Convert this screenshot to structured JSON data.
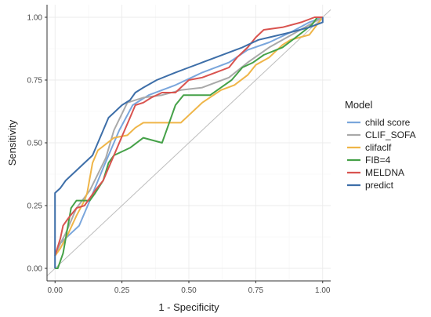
{
  "chart_data": {
    "type": "line",
    "title": "",
    "xlabel": "1 - Specificity",
    "ylabel": "Sensitivity",
    "xlim": [
      -0.03,
      1.03
    ],
    "ylim": [
      -0.05,
      1.05
    ],
    "x_ticks": [
      "0.00",
      "0.25",
      "0.50",
      "0.75",
      "1.00"
    ],
    "y_ticks": [
      "0.00",
      "0.25",
      "0.50",
      "0.75",
      "1.00"
    ],
    "x_tick_values": [
      0,
      0.25,
      0.5,
      0.75,
      1
    ],
    "y_tick_values": [
      0,
      0.25,
      0.5,
      0.75,
      1
    ],
    "grid": true,
    "reference_line": {
      "x": [
        0,
        1
      ],
      "y": [
        0,
        1
      ],
      "color": "#bdbdbd"
    },
    "legend": {
      "title": "Model",
      "position": "right"
    },
    "series": [
      {
        "name": "child score",
        "color": "#7aa6dc",
        "x": [
          0.0,
          0.02,
          0.06,
          0.09,
          0.13,
          0.18,
          0.24,
          0.29,
          0.35,
          0.45,
          0.55,
          0.65,
          0.72,
          0.8,
          0.88,
          0.95,
          1.0
        ],
        "y": [
          0.05,
          0.1,
          0.14,
          0.17,
          0.27,
          0.4,
          0.55,
          0.65,
          0.69,
          0.73,
          0.78,
          0.82,
          0.87,
          0.9,
          0.94,
          0.98,
          1.0
        ]
      },
      {
        "name": "CLIF_SOFA",
        "color": "#a9a9a9",
        "x": [
          0.0,
          0.02,
          0.04,
          0.08,
          0.13,
          0.19,
          0.22,
          0.27,
          0.33,
          0.4,
          0.47,
          0.55,
          0.65,
          0.72,
          0.8,
          0.9,
          1.0
        ],
        "y": [
          0.05,
          0.1,
          0.14,
          0.24,
          0.31,
          0.44,
          0.55,
          0.66,
          0.68,
          0.69,
          0.71,
          0.72,
          0.76,
          0.82,
          0.88,
          0.94,
          1.0
        ]
      },
      {
        "name": "clifaclf",
        "color": "#efb548",
        "x": [
          0.0,
          0.02,
          0.05,
          0.08,
          0.11,
          0.12,
          0.14,
          0.16,
          0.22,
          0.27,
          0.3,
          0.33,
          0.36,
          0.4,
          0.47,
          0.5,
          0.55,
          0.62,
          0.67,
          0.72,
          0.75,
          0.8,
          0.85,
          0.88,
          0.95,
          1.0
        ],
        "y": [
          0.05,
          0.08,
          0.14,
          0.21,
          0.27,
          0.3,
          0.42,
          0.47,
          0.52,
          0.53,
          0.56,
          0.58,
          0.58,
          0.58,
          0.58,
          0.61,
          0.66,
          0.71,
          0.73,
          0.77,
          0.81,
          0.84,
          0.89,
          0.91,
          0.93,
          1.0
        ]
      },
      {
        "name": "FIB=4",
        "color": "#45a148",
        "x": [
          0.0,
          0.01,
          0.02,
          0.03,
          0.04,
          0.05,
          0.06,
          0.08,
          0.1,
          0.13,
          0.15,
          0.18,
          0.2,
          0.22,
          0.28,
          0.33,
          0.4,
          0.42,
          0.45,
          0.48,
          0.52,
          0.58,
          0.62,
          0.66,
          0.7,
          0.74,
          0.78,
          0.85,
          0.9,
          0.96,
          0.98,
          1.0
        ],
        "y": [
          0.0,
          0.0,
          0.03,
          0.06,
          0.12,
          0.18,
          0.24,
          0.27,
          0.27,
          0.27,
          0.3,
          0.35,
          0.42,
          0.45,
          0.48,
          0.52,
          0.5,
          0.56,
          0.65,
          0.69,
          0.69,
          0.69,
          0.72,
          0.75,
          0.8,
          0.82,
          0.85,
          0.88,
          0.92,
          0.97,
          1.0,
          1.0
        ]
      },
      {
        "name": "MELDNA",
        "color": "#d9534f",
        "x": [
          0.0,
          0.02,
          0.03,
          0.05,
          0.08,
          0.11,
          0.13,
          0.15,
          0.18,
          0.2,
          0.22,
          0.24,
          0.26,
          0.28,
          0.3,
          0.33,
          0.36,
          0.4,
          0.45,
          0.5,
          0.55,
          0.6,
          0.65,
          0.68,
          0.72,
          0.75,
          0.78,
          0.85,
          0.92,
          0.97,
          1.0
        ],
        "y": [
          0.05,
          0.12,
          0.17,
          0.2,
          0.24,
          0.25,
          0.28,
          0.31,
          0.35,
          0.4,
          0.45,
          0.5,
          0.55,
          0.6,
          0.65,
          0.66,
          0.68,
          0.7,
          0.7,
          0.75,
          0.76,
          0.78,
          0.8,
          0.84,
          0.88,
          0.92,
          0.95,
          0.96,
          0.98,
          1.0,
          1.0
        ]
      },
      {
        "name": "predict",
        "color": "#3d6ea8",
        "x": [
          0.0,
          0.0,
          0.02,
          0.04,
          0.06,
          0.09,
          0.11,
          0.14,
          0.16,
          0.18,
          0.2,
          0.22,
          0.25,
          0.28,
          0.3,
          0.33,
          0.38,
          0.45,
          0.5,
          0.55,
          0.6,
          0.65,
          0.7,
          0.72,
          0.74,
          0.76,
          0.8,
          0.88,
          0.95,
          1.0,
          1.0
        ],
        "y": [
          0.0,
          0.3,
          0.32,
          0.35,
          0.37,
          0.4,
          0.42,
          0.45,
          0.5,
          0.55,
          0.6,
          0.62,
          0.65,
          0.67,
          0.7,
          0.72,
          0.75,
          0.78,
          0.8,
          0.82,
          0.84,
          0.86,
          0.88,
          0.89,
          0.9,
          0.91,
          0.92,
          0.94,
          0.96,
          0.98,
          1.0
        ]
      }
    ]
  }
}
